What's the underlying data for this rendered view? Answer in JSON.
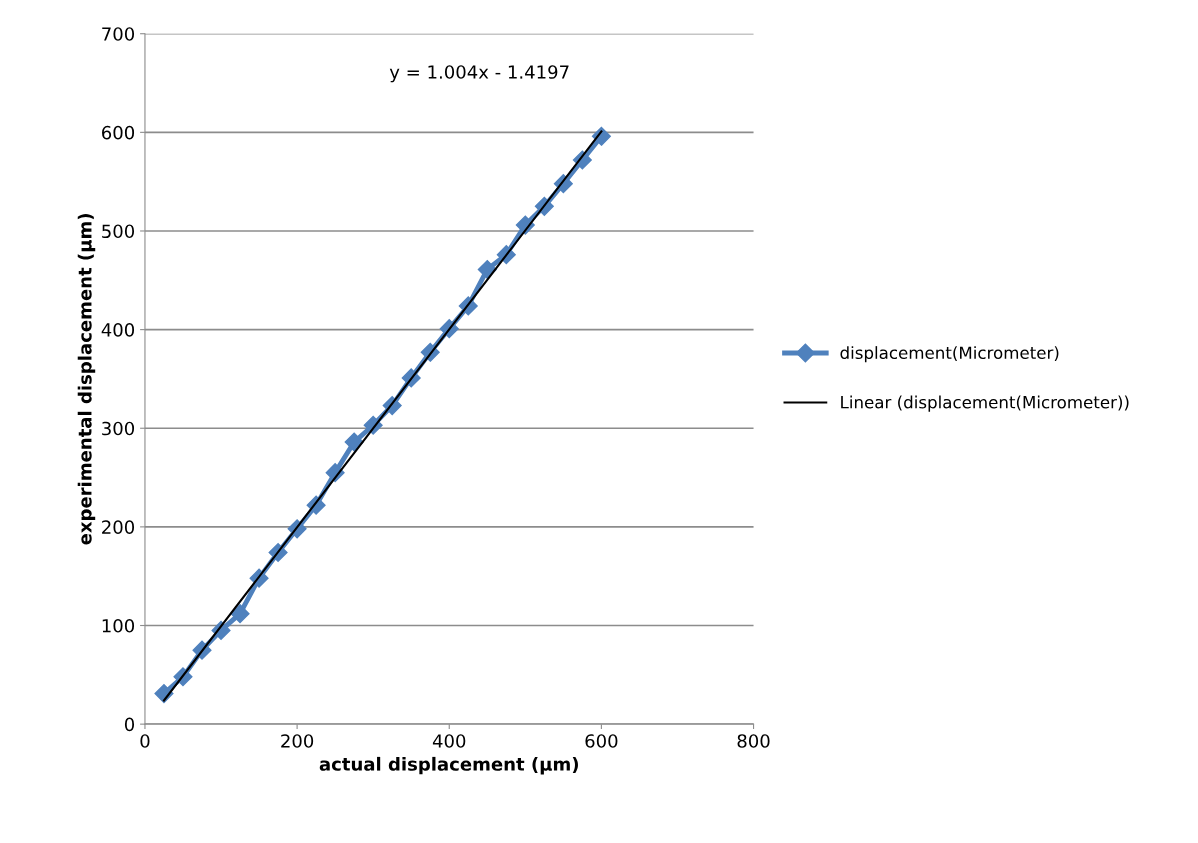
{
  "chart_data": {
    "type": "line",
    "xlabel": "actual displacement (µm)",
    "ylabel": "experimental displacement (µm)",
    "x": [
      25,
      50,
      75,
      100,
      125,
      150,
      175,
      200,
      225,
      250,
      275,
      300,
      325,
      350,
      375,
      400,
      425,
      450,
      475,
      500,
      525,
      550,
      575,
      600
    ],
    "series": [
      {
        "name": "displacement(Micrometer)",
        "color": "#4f81bd",
        "marker": "diamond",
        "values": [
          31,
          48,
          75,
          95,
          112,
          148,
          174,
          198,
          222,
          255,
          286,
          303,
          323,
          351,
          377,
          401,
          424,
          461,
          476,
          506,
          525,
          548,
          572,
          596
        ]
      },
      {
        "name": "Linear (displacement(Micrometer))",
        "color": "#000000",
        "marker": "none",
        "x": [
          25,
          600
        ],
        "values": [
          24,
          601
        ]
      }
    ],
    "annotations": [
      "y = 1.004x - 1.4197"
    ],
    "xlim": [
      0,
      800
    ],
    "xticks": [
      0,
      200,
      400,
      600,
      800
    ],
    "ylim": [
      0,
      700
    ],
    "yticks": [
      0,
      100,
      200,
      300,
      400,
      500,
      600,
      700
    ],
    "grid": "y",
    "legend": "right"
  }
}
